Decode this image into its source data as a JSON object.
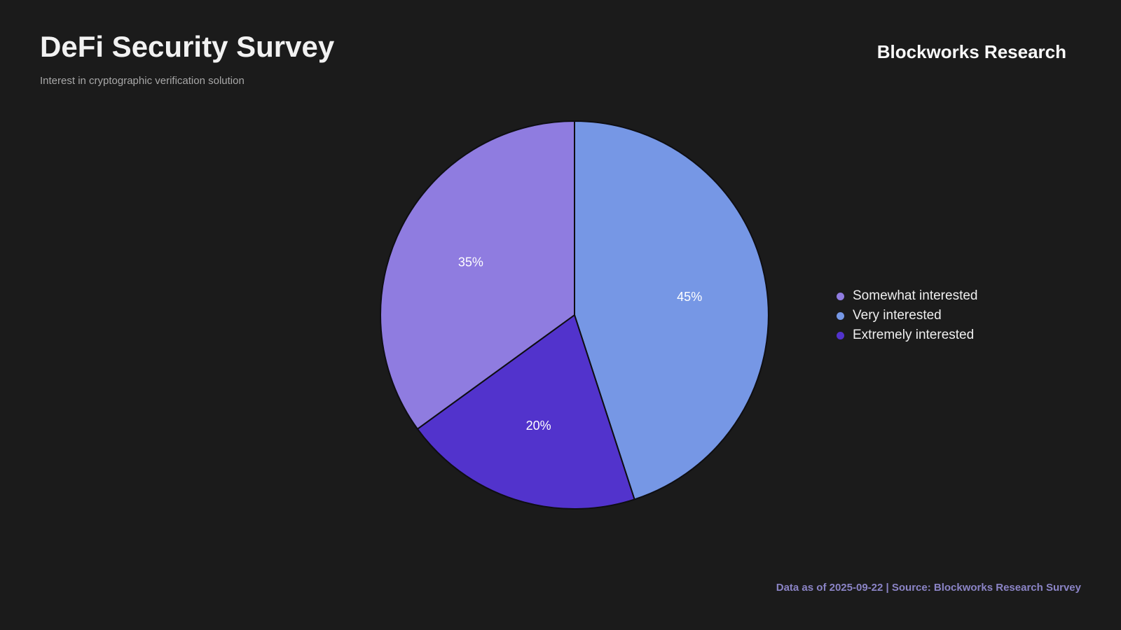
{
  "header": {
    "title": "DeFi Security Survey",
    "subtitle": "Interest in cryptographic verification solution",
    "brand": "Blockworks Research"
  },
  "chart_data": {
    "type": "pie",
    "title": "DeFi Security Survey",
    "subtitle": "Interest in cryptographic verification solution",
    "start_angle": "12-o-clock",
    "direction": "clockwise",
    "slices": [
      {
        "label": "Very interested",
        "value": 45,
        "display": "45%",
        "color": "#7697E5"
      },
      {
        "label": "Extremely interested",
        "value": 20,
        "display": "20%",
        "color": "#5233CC"
      },
      {
        "label": "Somewhat interested",
        "value": 35,
        "display": "35%",
        "color": "#8F7CE0"
      }
    ],
    "legend_position": "right",
    "legend_order": [
      "Somewhat interested",
      "Very interested",
      "Extremely interested"
    ]
  },
  "legend": {
    "items": [
      {
        "label": "Somewhat interested",
        "color": "#8F7CE0"
      },
      {
        "label": "Very interested",
        "color": "#7697E5"
      },
      {
        "label": "Extremely interested",
        "color": "#5233CC"
      }
    ]
  },
  "footer": {
    "text": "Data as of 2025-09-22 | Source: Blockworks Research Survey"
  },
  "colors": {
    "background": "#1B1B1B",
    "title": "#F2F2F2",
    "subtitle": "#A8A8A8",
    "brand": "#FAFAFA",
    "legend_text": "#EFEFEF",
    "footer": "#8B84C6",
    "slice_label": "#FFFFFF",
    "pie_stroke": "#0E0E12"
  }
}
